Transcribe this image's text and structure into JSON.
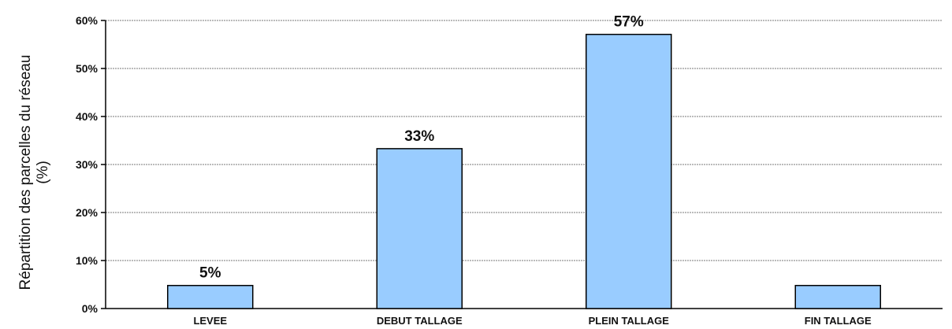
{
  "chart_data": {
    "type": "bar",
    "categories": [
      "LEVEE",
      "DEBUT TALLAGE",
      "PLEIN TALLAGE",
      "FIN TALLAGE"
    ],
    "values": [
      4.8,
      33.3,
      57.1,
      4.8
    ],
    "data_labels": [
      "5%",
      "33%",
      "57%",
      ""
    ],
    "ylabel_line1": "Répartition des parcelles du réseau",
    "ylabel_line2": "(%)",
    "ylim": [
      0,
      60
    ],
    "yticks": [
      0,
      10,
      20,
      30,
      40,
      50,
      60
    ],
    "ytick_labels": [
      "0%",
      "10%",
      "20%",
      "30%",
      "40%",
      "50%",
      "60%"
    ],
    "grid": true,
    "bar_color": "#99ccff",
    "bar_edge_color": "#000000"
  }
}
